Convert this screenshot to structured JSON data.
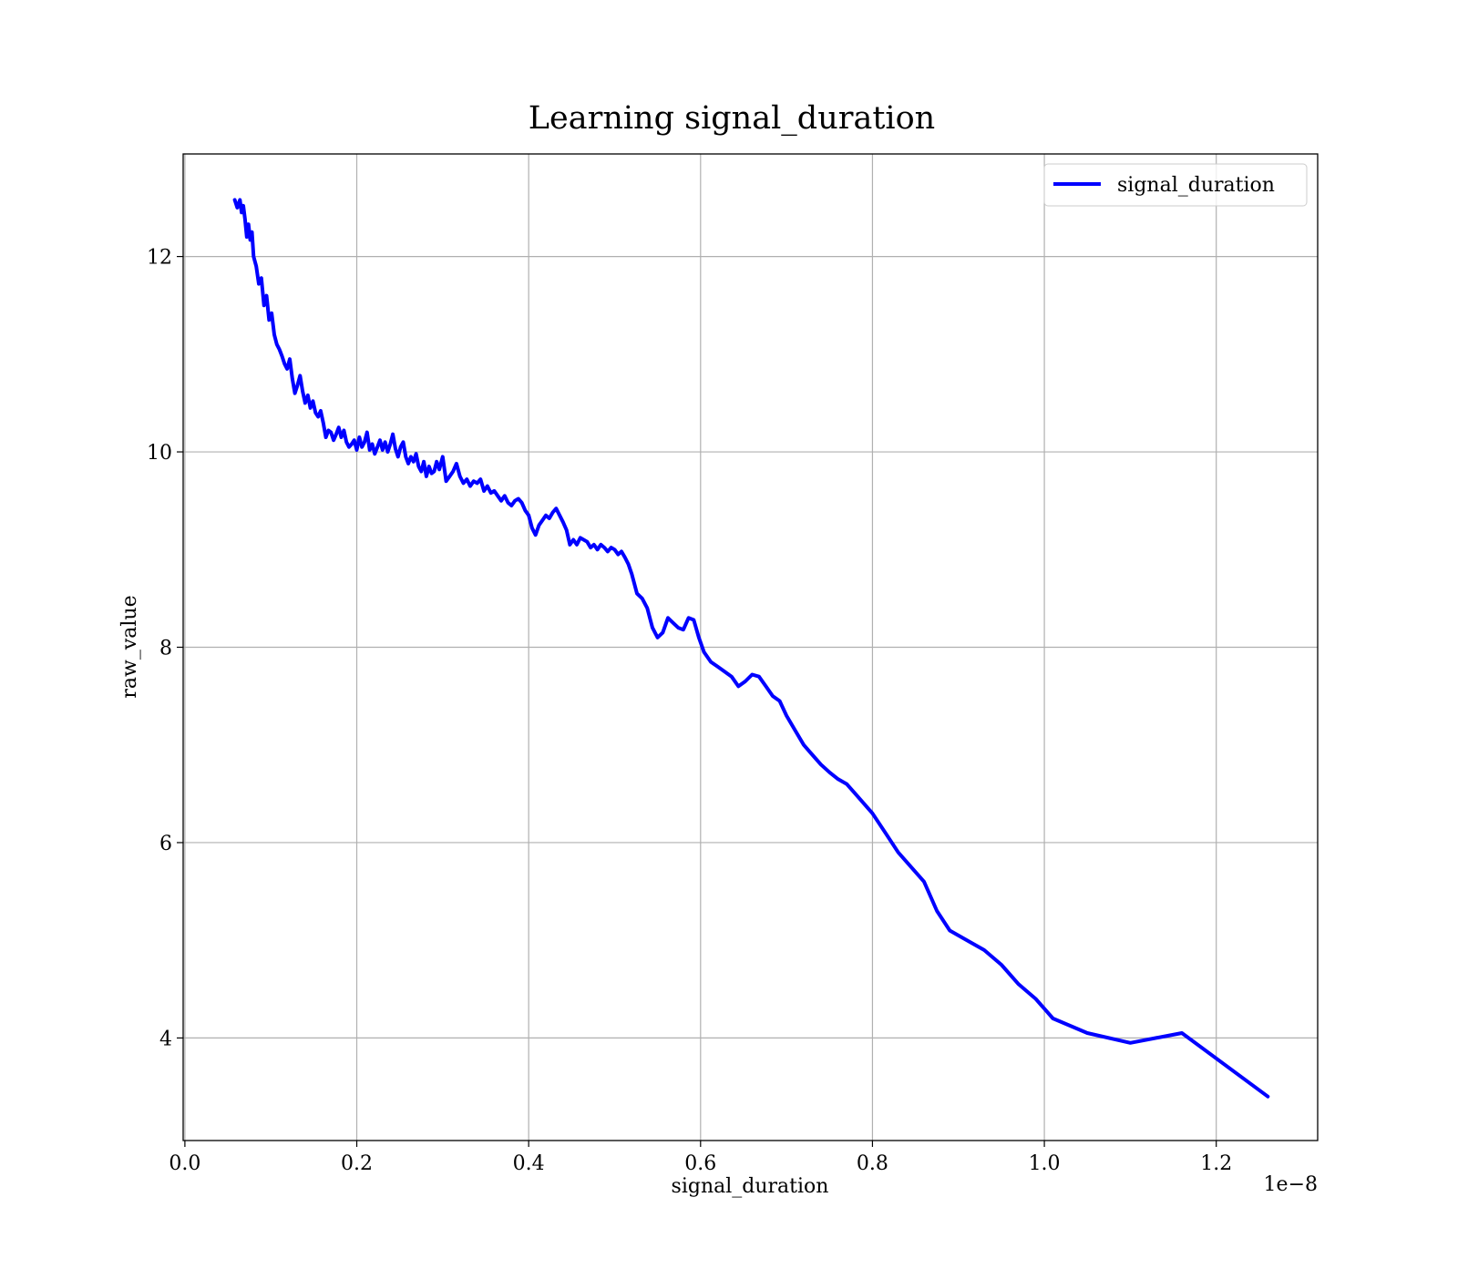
{
  "chart_data": {
    "type": "line",
    "title": "Learning signal_duration",
    "xlabel": "signal_duration",
    "ylabel": "raw_value",
    "x_offset_label": "1e−8",
    "xlim": [
      -0.002,
      1.318
    ],
    "ylim": [
      2.95,
      13.05
    ],
    "x_ticks": [
      0.0,
      0.2,
      0.4,
      0.6,
      0.8,
      1.0,
      1.2
    ],
    "x_tick_labels": [
      "0.0",
      "0.2",
      "0.4",
      "0.6",
      "0.8",
      "1.0",
      "1.2"
    ],
    "y_ticks": [
      4,
      6,
      8,
      10,
      12
    ],
    "y_tick_labels": [
      "4",
      "6",
      "8",
      "10",
      "12"
    ],
    "grid": true,
    "legend_position": "top-right",
    "series": [
      {
        "name": "signal_duration",
        "color": "#0000ff",
        "x": [
          0.058,
          0.061,
          0.064,
          0.066,
          0.068,
          0.07,
          0.072,
          0.074,
          0.076,
          0.078,
          0.08,
          0.083,
          0.086,
          0.089,
          0.092,
          0.095,
          0.098,
          0.101,
          0.104,
          0.107,
          0.11,
          0.113,
          0.116,
          0.119,
          0.122,
          0.125,
          0.128,
          0.131,
          0.134,
          0.137,
          0.14,
          0.143,
          0.146,
          0.149,
          0.152,
          0.155,
          0.158,
          0.161,
          0.164,
          0.167,
          0.17,
          0.173,
          0.176,
          0.179,
          0.182,
          0.185,
          0.188,
          0.191,
          0.194,
          0.197,
          0.2,
          0.203,
          0.206,
          0.209,
          0.212,
          0.215,
          0.218,
          0.221,
          0.224,
          0.227,
          0.23,
          0.233,
          0.236,
          0.239,
          0.242,
          0.245,
          0.248,
          0.251,
          0.254,
          0.257,
          0.26,
          0.263,
          0.266,
          0.269,
          0.272,
          0.275,
          0.278,
          0.281,
          0.284,
          0.287,
          0.29,
          0.293,
          0.296,
          0.3,
          0.304,
          0.308,
          0.312,
          0.316,
          0.32,
          0.324,
          0.328,
          0.332,
          0.336,
          0.34,
          0.344,
          0.348,
          0.352,
          0.356,
          0.36,
          0.364,
          0.368,
          0.372,
          0.376,
          0.38,
          0.384,
          0.388,
          0.392,
          0.396,
          0.4,
          0.404,
          0.408,
          0.412,
          0.416,
          0.42,
          0.424,
          0.428,
          0.432,
          0.436,
          0.44,
          0.444,
          0.448,
          0.452,
          0.456,
          0.46,
          0.464,
          0.468,
          0.472,
          0.476,
          0.48,
          0.484,
          0.488,
          0.492,
          0.496,
          0.5,
          0.504,
          0.508,
          0.512,
          0.516,
          0.52,
          0.526,
          0.532,
          0.538,
          0.544,
          0.55,
          0.556,
          0.562,
          0.568,
          0.574,
          0.58,
          0.586,
          0.592,
          0.598,
          0.604,
          0.612,
          0.62,
          0.628,
          0.636,
          0.644,
          0.652,
          0.66,
          0.668,
          0.676,
          0.684,
          0.692,
          0.7,
          0.71,
          0.72,
          0.73,
          0.74,
          0.75,
          0.76,
          0.77,
          0.78,
          0.79,
          0.8,
          0.815,
          0.83,
          0.845,
          0.86,
          0.875,
          0.89,
          0.91,
          0.93,
          0.95,
          0.97,
          0.99,
          1.01,
          1.05,
          1.1,
          1.16,
          1.26
        ],
        "values": [
          12.58,
          12.5,
          12.58,
          12.45,
          12.52,
          12.38,
          12.2,
          12.33,
          12.17,
          12.25,
          12.0,
          11.9,
          11.72,
          11.78,
          11.5,
          11.6,
          11.35,
          11.42,
          11.2,
          11.1,
          11.05,
          10.98,
          10.9,
          10.85,
          10.95,
          10.75,
          10.6,
          10.68,
          10.78,
          10.62,
          10.5,
          10.58,
          10.45,
          10.52,
          10.4,
          10.36,
          10.42,
          10.3,
          10.15,
          10.22,
          10.2,
          10.12,
          10.18,
          10.25,
          10.15,
          10.22,
          10.1,
          10.05,
          10.08,
          10.12,
          10.02,
          10.15,
          10.05,
          10.1,
          10.2,
          10.02,
          10.08,
          9.98,
          10.05,
          10.12,
          10.02,
          10.1,
          10.0,
          10.08,
          10.18,
          10.03,
          9.95,
          10.05,
          10.1,
          9.95,
          9.88,
          9.95,
          9.9,
          9.98,
          9.85,
          9.8,
          9.9,
          9.75,
          9.85,
          9.78,
          9.8,
          9.9,
          9.82,
          9.95,
          9.7,
          9.75,
          9.8,
          9.88,
          9.75,
          9.68,
          9.72,
          9.65,
          9.7,
          9.68,
          9.72,
          9.6,
          9.65,
          9.58,
          9.6,
          9.55,
          9.5,
          9.55,
          9.48,
          9.45,
          9.5,
          9.52,
          9.48,
          9.4,
          9.35,
          9.22,
          9.15,
          9.25,
          9.3,
          9.35,
          9.32,
          9.38,
          9.42,
          9.35,
          9.28,
          9.2,
          9.05,
          9.1,
          9.05,
          9.12,
          9.1,
          9.08,
          9.02,
          9.05,
          9.0,
          9.05,
          9.02,
          8.98,
          9.02,
          9.0,
          8.95,
          8.98,
          8.92,
          8.85,
          8.75,
          8.55,
          8.5,
          8.4,
          8.2,
          8.1,
          8.15,
          8.3,
          8.25,
          8.2,
          8.18,
          8.3,
          8.28,
          8.1,
          7.95,
          7.85,
          7.8,
          7.75,
          7.7,
          7.6,
          7.65,
          7.72,
          7.7,
          7.6,
          7.5,
          7.45,
          7.3,
          7.15,
          7.0,
          6.9,
          6.8,
          6.72,
          6.65,
          6.6,
          6.5,
          6.4,
          6.3,
          6.1,
          5.9,
          5.75,
          5.6,
          5.3,
          5.1,
          5.0,
          4.9,
          4.75,
          4.55,
          4.4,
          4.2,
          4.05,
          3.95,
          4.05,
          3.4
        ]
      }
    ]
  }
}
